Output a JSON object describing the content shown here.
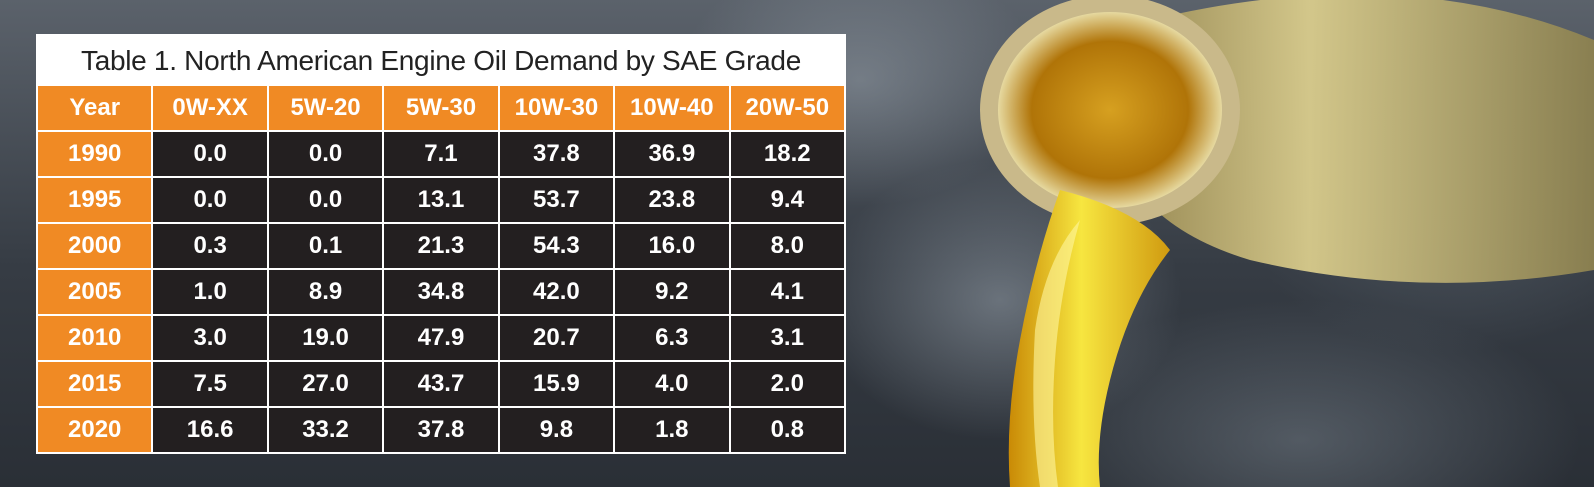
{
  "chart_data": {
    "type": "table",
    "title": "Table 1. North American Engine Oil Demand by SAE Grade",
    "columns": [
      "Year",
      "0W-XX",
      "5W-20",
      "5W-30",
      "10W-30",
      "10W-40",
      "20W-50"
    ],
    "rows": [
      [
        "1990",
        "0.0",
        "0.0",
        "7.1",
        "37.8",
        "36.9",
        "18.2"
      ],
      [
        "1995",
        "0.0",
        "0.0",
        "13.1",
        "53.7",
        "23.8",
        "9.4"
      ],
      [
        "2000",
        "0.3",
        "0.1",
        "21.3",
        "54.3",
        "16.0",
        "8.0"
      ],
      [
        "2005",
        "1.0",
        "8.9",
        "34.8",
        "42.0",
        "9.2",
        "4.1"
      ],
      [
        "2010",
        "3.0",
        "19.0",
        "47.9",
        "20.7",
        "6.3",
        "3.1"
      ],
      [
        "2015",
        "7.5",
        "27.0",
        "43.7",
        "15.9",
        "4.0",
        "2.0"
      ],
      [
        "2020",
        "16.6",
        "33.2",
        "37.8",
        "9.8",
        "1.8",
        "0.8"
      ]
    ]
  },
  "colors": {
    "header_orange": "#f08a24",
    "cell_dark": "#231f20",
    "text_white": "#ffffff"
  }
}
